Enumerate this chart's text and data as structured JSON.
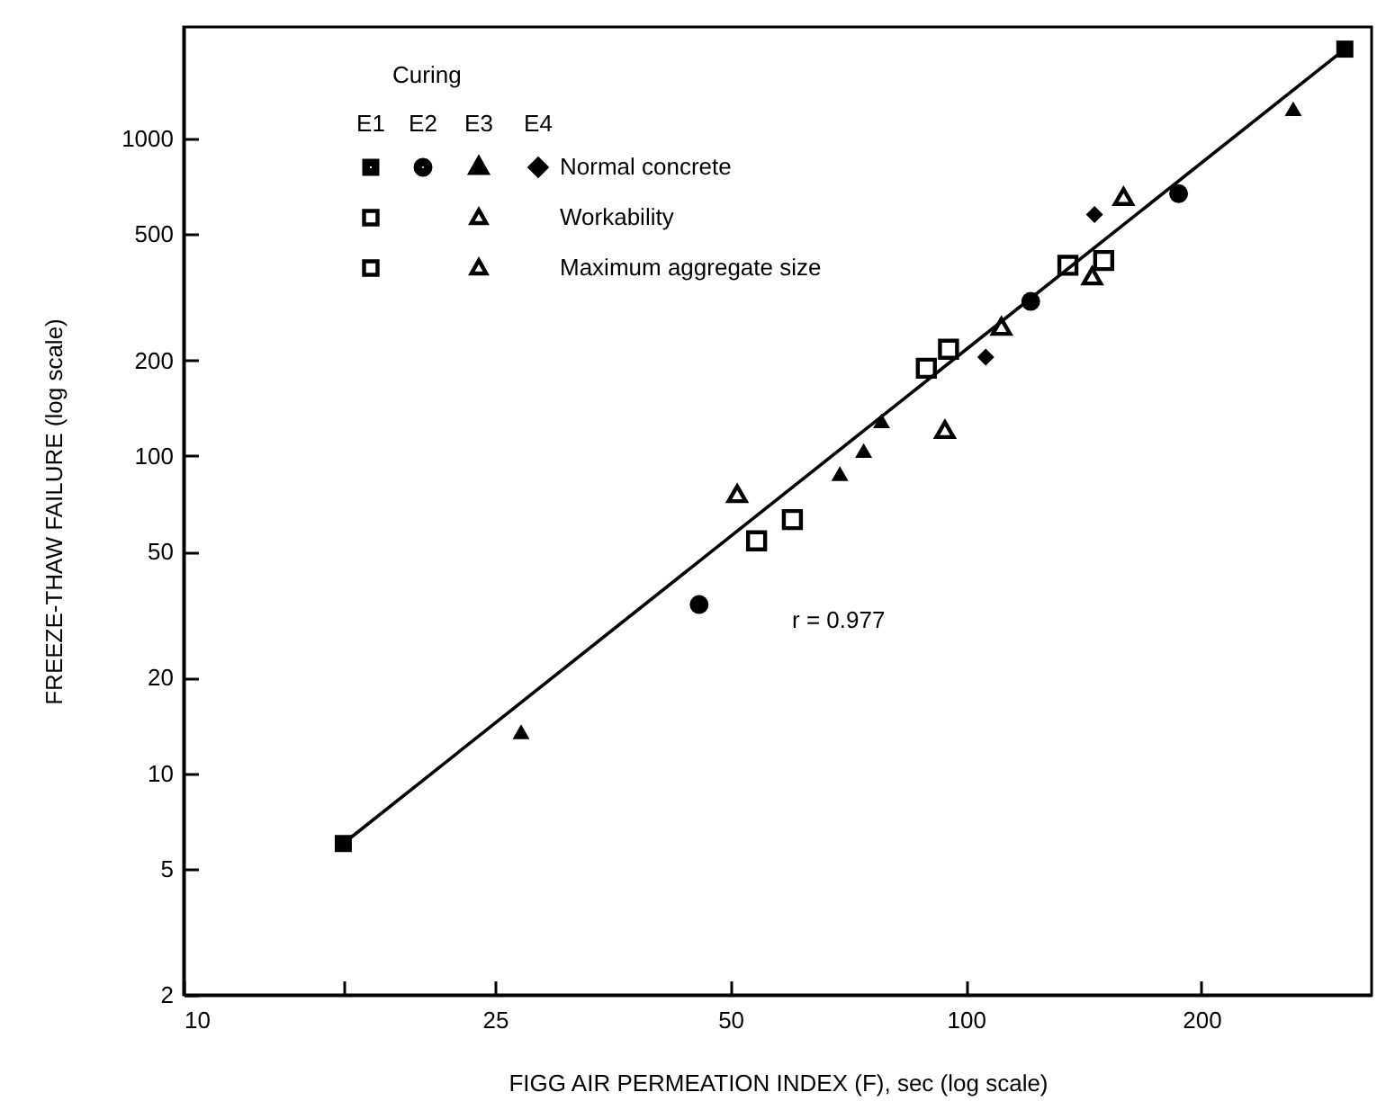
{
  "chart_data": {
    "type": "scatter",
    "xlabel": "FIGG AIR PERMEATION INDEX (F), sec (log scale)",
    "ylabel": "FREEZE-THAW FAILURE (log scale)",
    "legend_title": "Curing",
    "annotations": [
      "E1",
      "E2",
      "E3",
      "E4",
      "Normal concrete",
      "Workability",
      "Maximum aggregate size",
      "r = 0.977"
    ],
    "log": "xy",
    "grid": false,
    "xlim": [
      10,
      330
    ],
    "ylim": [
      2,
      2250
    ],
    "xticks": [
      10,
      {
        "value": 16,
        "label": null
      },
      25,
      50,
      100,
      200
    ],
    "yticks": [
      2,
      5,
      10,
      20,
      50,
      100,
      200,
      500,
      1000
    ],
    "series": [
      {
        "type": "line",
        "color": "#000000",
        "line_style": "solid",
        "x": [
          16,
          305
        ],
        "values": [
          6,
          1916
        ]
      },
      {
        "color": "#000000",
        "marker": "square",
        "x": [
          16,
          305
        ],
        "values": [
          6,
          1916
        ]
      },
      {
        "color": "#000000",
        "marker": "circle",
        "x": [
          45.6,
          121,
          187
        ],
        "values": [
          34,
          307,
          671
        ]
      },
      {
        "color": "#000000",
        "marker": "triangle",
        "x": [
          27,
          69,
          74,
          78,
          262
        ],
        "values": [
          13.5,
          88,
          104,
          129,
          1243
        ]
      },
      {
        "color": "#000000",
        "marker": "diamond",
        "x": [
          106,
          146
        ],
        "values": [
          205,
          577
        ]
      },
      {
        "color": "#000000",
        "marker": "square",
        "x": [
          60,
          89,
          150
        ],
        "values": [
          63,
          189,
          413
        ]
      },
      {
        "color": "#000000",
        "marker": "triangle",
        "x": [
          111,
          145
        ],
        "values": [
          256,
          369
        ]
      },
      {
        "color": "#000000",
        "marker": "square",
        "x": [
          54,
          95,
          135
        ],
        "values": [
          54,
          217,
          399
        ]
      },
      {
        "color": "#000000",
        "marker": "triangle",
        "x": [
          51,
          94,
          159
        ],
        "values": [
          76,
          121,
          657
        ]
      }
    ]
  }
}
